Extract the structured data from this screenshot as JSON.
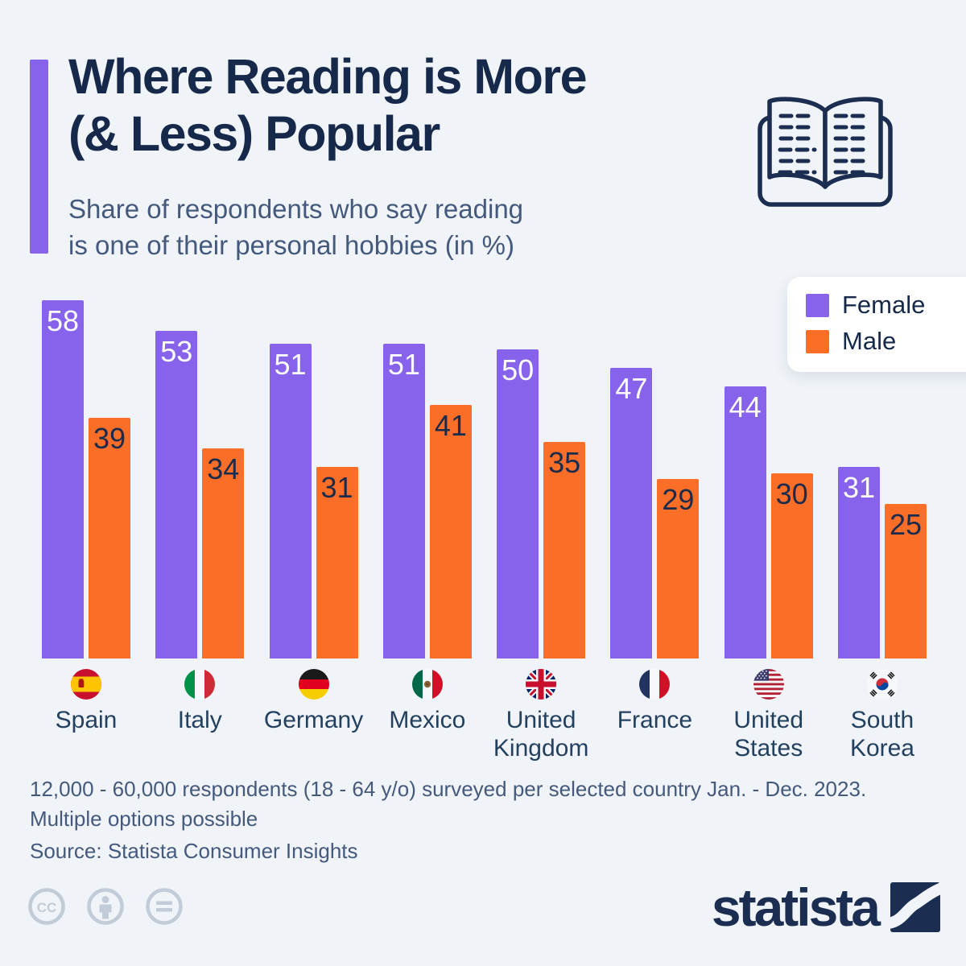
{
  "colors": {
    "background": "#f0f4f8",
    "navy": "#16294a",
    "slate_text": "#44597c",
    "female_purple": "#8762eb",
    "male_orange": "#fa6e27",
    "license_gray": "#c2ccd9"
  },
  "header": {
    "title": "Where Reading is More\n(& Less) Popular",
    "subtitle": "Share of respondents who say reading\nis one of their personal hobbies (in %)",
    "accent_color": "#8762eb",
    "icon": "open-book-icon"
  },
  "chart_data": {
    "type": "bar",
    "title": "Where Reading is More (& Less) Popular",
    "subtitle": "Share of respondents who say reading is one of their personal hobbies (in %)",
    "categories": [
      "Spain",
      "Italy",
      "Germany",
      "Mexico",
      "United Kingdom",
      "France",
      "United States",
      "South Korea"
    ],
    "series": [
      {
        "name": "Female",
        "color": "#8762eb",
        "values": [
          58,
          53,
          51,
          51,
          50,
          47,
          44,
          31
        ]
      },
      {
        "name": "Male",
        "color": "#fa6e27",
        "values": [
          39,
          34,
          31,
          41,
          35,
          29,
          30,
          25
        ]
      }
    ],
    "flag_icons": [
      "spain",
      "italy",
      "germany",
      "mexico",
      "united-kingdom",
      "france",
      "united-states",
      "south-korea"
    ],
    "ylim": [
      0,
      58
    ],
    "grid": false,
    "legend_position": "top-right",
    "value_labels": "inside-top"
  },
  "footer": {
    "note": "12,000 - 60,000 respondents (18 - 64 y/o) surveyed per selected country Jan. - Dec. 2023.\nMultiple options possible",
    "source": "Source: Statista Consumer Insights",
    "license_icons": [
      "cc-icon",
      "attribution-person-icon",
      "no-derivatives-equals-icon"
    ],
    "brand": "statista"
  }
}
